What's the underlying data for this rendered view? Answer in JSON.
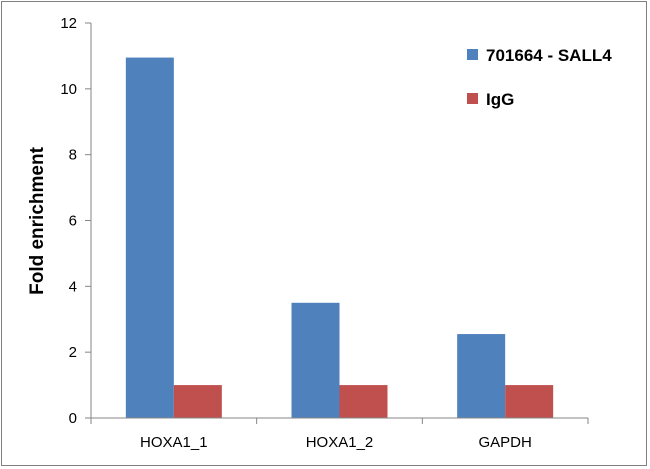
{
  "chart_data": {
    "type": "bar",
    "categories": [
      "HOXA1_1",
      "HOXA1_2",
      "GAPDH"
    ],
    "series": [
      {
        "name": "701664 - SALL4",
        "color": "#4f81bd",
        "values": [
          10.95,
          3.5,
          2.55
        ]
      },
      {
        "name": "IgG",
        "color": "#c0504d",
        "values": [
          1.0,
          1.0,
          1.0
        ]
      }
    ],
    "title": "",
    "xlabel": "",
    "ylabel": "Fold enrichment",
    "ylim": [
      0,
      12
    ],
    "yticks": [
      0,
      2,
      4,
      6,
      8,
      10,
      12
    ],
    "grid": false,
    "legend_position": "top-right"
  }
}
